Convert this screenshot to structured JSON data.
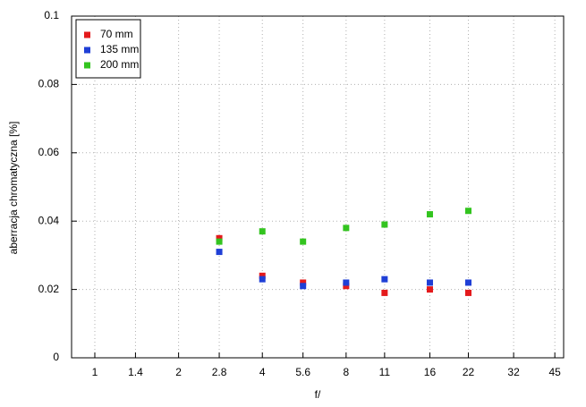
{
  "chart_data": {
    "type": "scatter",
    "x_label": "f/",
    "y_label": "aberracja chromatyczna [%]",
    "x": [
      2.8,
      4,
      5.6,
      8,
      11,
      16,
      22
    ],
    "series": [
      {
        "name": "70 mm",
        "color": "#e41a1c",
        "values": [
          0.035,
          0.024,
          0.022,
          0.021,
          0.019,
          0.02,
          0.019
        ]
      },
      {
        "name": "135 mm",
        "color": "#1f3fd6",
        "values": [
          0.031,
          0.023,
          0.021,
          0.022,
          0.023,
          0.022,
          0.022
        ]
      },
      {
        "name": "200 mm",
        "color": "#33c41f",
        "values": [
          0.034,
          0.037,
          0.034,
          0.038,
          0.039,
          0.042,
          0.043
        ]
      }
    ],
    "x_log": true,
    "xlim": [
      0.825,
      48.4
    ],
    "xticks": [
      1,
      1.4,
      2,
      2.8,
      4,
      5.6,
      8,
      11,
      16,
      22,
      32,
      45
    ],
    "ylim": [
      0,
      0.1
    ],
    "yticks": [
      0,
      0.02,
      0.04,
      0.06,
      0.08,
      0.1
    ],
    "grid": true,
    "legend": "top-left"
  }
}
